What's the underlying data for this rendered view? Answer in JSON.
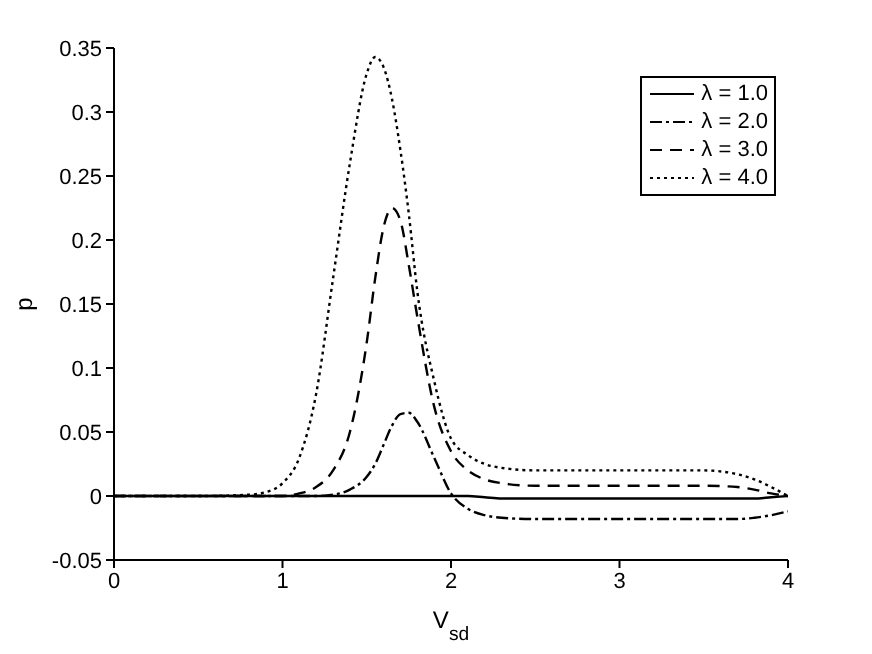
{
  "chart_data": {
    "type": "line",
    "xlabel": "V$_{sd}$",
    "ylabel": "p",
    "x": [
      0,
      0.5,
      0.8,
      0.9,
      1.0,
      1.1,
      1.2,
      1.3,
      1.4,
      1.5,
      1.55,
      1.6,
      1.65,
      1.7,
      1.75,
      1.8,
      1.9,
      2.0,
      2.1,
      2.2,
      2.3,
      2.5,
      3.0,
      3.5,
      3.7,
      3.8,
      3.9,
      4.0
    ],
    "series": [
      {
        "name": "λ = 1.0",
        "color": "#000000",
        "line_style": "solid",
        "values": [
          0,
          0,
          0,
          0,
          0,
          0,
          0,
          0,
          0,
          0,
          0,
          0,
          0,
          0,
          0,
          0,
          0,
          0,
          0,
          -0.001,
          -0.002,
          -0.002,
          -0.002,
          -0.002,
          -0.002,
          -0.002,
          -0.001,
          0
        ]
      },
      {
        "name": "λ = 2.0",
        "color": "#000000",
        "line_style": "dashdot",
        "values": [
          0,
          0,
          0,
          0,
          0,
          0,
          0,
          0.001,
          0.005,
          0.015,
          0.025,
          0.04,
          0.055,
          0.064,
          0.065,
          0.058,
          0.03,
          0.002,
          -0.01,
          -0.015,
          -0.017,
          -0.018,
          -0.018,
          -0.018,
          -0.018,
          -0.017,
          -0.015,
          -0.012
        ]
      },
      {
        "name": "λ = 3.0",
        "color": "#000000",
        "line_style": "dashed",
        "values": [
          0,
          0,
          0,
          0,
          0,
          0.002,
          0.007,
          0.02,
          0.05,
          0.12,
          0.17,
          0.21,
          0.225,
          0.215,
          0.18,
          0.14,
          0.07,
          0.035,
          0.02,
          0.013,
          0.01,
          0.008,
          0.008,
          0.008,
          0.007,
          0.005,
          0.002,
          0
        ]
      },
      {
        "name": "λ = 4.0",
        "color": "#000000",
        "line_style": "dotted",
        "values": [
          0,
          0,
          0.001,
          0.003,
          0.01,
          0.03,
          0.08,
          0.17,
          0.26,
          0.33,
          0.343,
          0.335,
          0.31,
          0.27,
          0.22,
          0.16,
          0.09,
          0.045,
          0.032,
          0.025,
          0.022,
          0.02,
          0.02,
          0.02,
          0.017,
          0.013,
          0.007,
          0
        ]
      }
    ],
    "xlim": [
      0,
      4
    ],
    "xticks": [
      0,
      1,
      2,
      3,
      4
    ],
    "ylim": [
      -0.05,
      0.35
    ],
    "yticks": [
      -0.05,
      0,
      0.05,
      0.1,
      0.15,
      0.2,
      0.25,
      0.3,
      0.35
    ],
    "grid": false,
    "legend": "top right",
    "marker": "none"
  }
}
